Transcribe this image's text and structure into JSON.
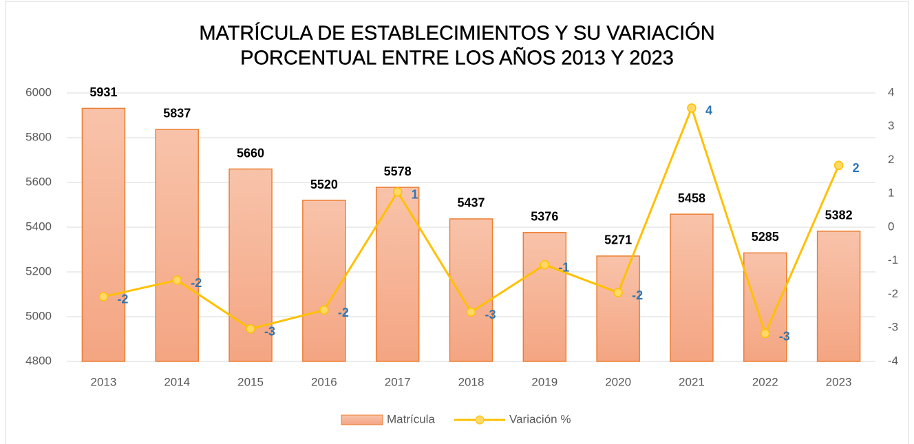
{
  "chart_data": {
    "type": "bar-line",
    "title": [
      "MATRÍCULA DE ESTABLECIMIENTOS Y SU VARIACIÓN",
      "PORCENTUAL ENTRE LOS AÑOS 2013 Y 2023"
    ],
    "categories": [
      "2013",
      "2014",
      "2015",
      "2016",
      "2017",
      "2018",
      "2019",
      "2020",
      "2021",
      "2022",
      "2023"
    ],
    "series": [
      {
        "name": "Matrícula",
        "type": "bar",
        "color": "#f4a582",
        "axis": "y",
        "values": [
          5931,
          5837,
          5660,
          5520,
          5578,
          5437,
          5376,
          5271,
          5458,
          5285,
          5382
        ]
      },
      {
        "name": "Variación %",
        "type": "line",
        "color": "#ffc000",
        "axis": "y2",
        "values": [
          -2.07,
          -1.58,
          -3.03,
          -2.47,
          1.05,
          -2.53,
          -1.12,
          -1.95,
          3.55,
          -3.17,
          1.84
        ],
        "value_labels": [
          "-2",
          "-2",
          "-3",
          "-2",
          "1",
          "-3",
          "-1",
          "-2",
          "4",
          "-3",
          "2"
        ]
      }
    ],
    "ylim": [
      4800,
      6000
    ],
    "yticks": [
      4800,
      5000,
      5200,
      5400,
      5600,
      5800,
      6000
    ],
    "y2lim": [
      -4,
      4
    ],
    "y2ticks": [
      -4,
      -3,
      -2,
      -1,
      0,
      1,
      2,
      3,
      4
    ],
    "grid": true,
    "legend": "bottom"
  }
}
